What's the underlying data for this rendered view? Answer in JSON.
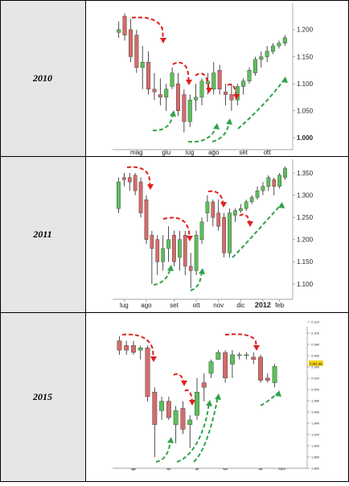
{
  "rows": [
    {
      "year": "2010"
    },
    {
      "year": "2011"
    },
    {
      "year": "2015"
    }
  ],
  "colors": {
    "bull": "#5cbf5a",
    "bear": "#d46b6b",
    "down_arrow": "#e02020",
    "up_arrow": "#2fa34a",
    "cell_bg": "#e6e6e6"
  },
  "chart_data": [
    {
      "type": "candlestick",
      "title": "2010",
      "x_tick_labels": [
        "mag",
        "giu",
        "lug",
        "ago",
        "set",
        "ott"
      ],
      "y_tick_labels": [
        "1.200",
        "1.150",
        "1.100",
        "1.050",
        "1.000"
      ],
      "ylim": [
        0.99,
        1.24
      ],
      "candles": [
        {
          "o": 1.195,
          "h": 1.215,
          "l": 1.185,
          "c": 1.2
        },
        {
          "o": 1.225,
          "h": 1.23,
          "l": 1.18,
          "c": 1.19
        },
        {
          "o": 1.2,
          "h": 1.22,
          "l": 1.14,
          "c": 1.15
        },
        {
          "o": 1.19,
          "h": 1.2,
          "l": 1.12,
          "c": 1.13
        },
        {
          "o": 1.13,
          "h": 1.17,
          "l": 1.09,
          "c": 1.14
        },
        {
          "o": 1.14,
          "h": 1.16,
          "l": 1.08,
          "c": 1.09
        },
        {
          "o": 1.09,
          "h": 1.12,
          "l": 1.07,
          "c": 1.085
        },
        {
          "o": 1.08,
          "h": 1.11,
          "l": 1.06,
          "c": 1.075
        },
        {
          "o": 1.075,
          "h": 1.1,
          "l": 1.05,
          "c": 1.09
        },
        {
          "o": 1.095,
          "h": 1.13,
          "l": 1.09,
          "c": 1.12
        },
        {
          "o": 1.1,
          "h": 1.12,
          "l": 1.04,
          "c": 1.05
        },
        {
          "o": 1.08,
          "h": 1.09,
          "l": 1.01,
          "c": 1.03
        },
        {
          "o": 1.03,
          "h": 1.08,
          "l": 1.02,
          "c": 1.07
        },
        {
          "o": 1.07,
          "h": 1.1,
          "l": 1.05,
          "c": 1.075
        },
        {
          "o": 1.075,
          "h": 1.11,
          "l": 1.06,
          "c": 1.105
        },
        {
          "o": 1.1,
          "h": 1.12,
          "l": 1.08,
          "c": 1.105
        },
        {
          "o": 1.09,
          "h": 1.14,
          "l": 1.08,
          "c": 1.12
        },
        {
          "o": 1.125,
          "h": 1.135,
          "l": 1.08,
          "c": 1.09
        },
        {
          "o": 1.085,
          "h": 1.1,
          "l": 1.06,
          "c": 1.08
        },
        {
          "o": 1.08,
          "h": 1.1,
          "l": 1.05,
          "c": 1.07
        },
        {
          "o": 1.07,
          "h": 1.1,
          "l": 1.06,
          "c": 1.095
        },
        {
          "o": 1.095,
          "h": 1.11,
          "l": 1.08,
          "c": 1.105
        },
        {
          "o": 1.105,
          "h": 1.13,
          "l": 1.1,
          "c": 1.125
        },
        {
          "o": 1.12,
          "h": 1.15,
          "l": 1.115,
          "c": 1.145
        },
        {
          "o": 1.145,
          "h": 1.16,
          "l": 1.13,
          "c": 1.15
        },
        {
          "o": 1.15,
          "h": 1.17,
          "l": 1.14,
          "c": 1.16
        },
        {
          "o": 1.16,
          "h": 1.175,
          "l": 1.155,
          "c": 1.17
        },
        {
          "o": 1.17,
          "h": 1.18,
          "l": 1.165,
          "c": 1.175
        },
        {
          "o": 1.175,
          "h": 1.19,
          "l": 1.17,
          "c": 1.185
        }
      ],
      "x_ticks_at": [
        3,
        8,
        12,
        16,
        21,
        25
      ]
    },
    {
      "type": "candlestick",
      "title": "2011",
      "x_tick_labels": [
        "lug",
        "ago",
        "set",
        "ott",
        "nov",
        "dic",
        "2012",
        "feb"
      ],
      "y_tick_labels": [
        "1.350",
        "1.300",
        "1.250",
        "1.200",
        "1.150",
        "1.100"
      ],
      "ylim": [
        1.08,
        1.37
      ],
      "candles": [
        {
          "o": 1.27,
          "h": 1.34,
          "l": 1.26,
          "c": 1.33
        },
        {
          "o": 1.34,
          "h": 1.35,
          "l": 1.32,
          "c": 1.335
        },
        {
          "o": 1.34,
          "h": 1.35,
          "l": 1.31,
          "c": 1.33
        },
        {
          "o": 1.345,
          "h": 1.35,
          "l": 1.3,
          "c": 1.31
        },
        {
          "o": 1.33,
          "h": 1.34,
          "l": 1.25,
          "c": 1.26
        },
        {
          "o": 1.29,
          "h": 1.3,
          "l": 1.19,
          "c": 1.2
        },
        {
          "o": 1.21,
          "h": 1.22,
          "l": 1.1,
          "c": 1.18
        },
        {
          "o": 1.2,
          "h": 1.21,
          "l": 1.12,
          "c": 1.15
        },
        {
          "o": 1.15,
          "h": 1.21,
          "l": 1.13,
          "c": 1.18
        },
        {
          "o": 1.18,
          "h": 1.23,
          "l": 1.15,
          "c": 1.2
        },
        {
          "o": 1.21,
          "h": 1.22,
          "l": 1.14,
          "c": 1.15
        },
        {
          "o": 1.16,
          "h": 1.22,
          "l": 1.13,
          "c": 1.2
        },
        {
          "o": 1.21,
          "h": 1.22,
          "l": 1.12,
          "c": 1.14
        },
        {
          "o": 1.14,
          "h": 1.17,
          "l": 1.09,
          "c": 1.13
        },
        {
          "o": 1.13,
          "h": 1.22,
          "l": 1.12,
          "c": 1.21
        },
        {
          "o": 1.2,
          "h": 1.25,
          "l": 1.19,
          "c": 1.24
        },
        {
          "o": 1.26,
          "h": 1.3,
          "l": 1.24,
          "c": 1.285
        },
        {
          "o": 1.285,
          "h": 1.29,
          "l": 1.23,
          "c": 1.25
        },
        {
          "o": 1.26,
          "h": 1.29,
          "l": 1.22,
          "c": 1.23
        },
        {
          "o": 1.25,
          "h": 1.26,
          "l": 1.16,
          "c": 1.17
        },
        {
          "o": 1.17,
          "h": 1.27,
          "l": 1.16,
          "c": 1.26
        },
        {
          "o": 1.255,
          "h": 1.27,
          "l": 1.24,
          "c": 1.265
        },
        {
          "o": 1.265,
          "h": 1.28,
          "l": 1.26,
          "c": 1.27
        },
        {
          "o": 1.27,
          "h": 1.29,
          "l": 1.265,
          "c": 1.285
        },
        {
          "o": 1.285,
          "h": 1.3,
          "l": 1.28,
          "c": 1.295
        },
        {
          "o": 1.295,
          "h": 1.32,
          "l": 1.29,
          "c": 1.31
        },
        {
          "o": 1.31,
          "h": 1.33,
          "l": 1.3,
          "c": 1.32
        },
        {
          "o": 1.32,
          "h": 1.345,
          "l": 1.31,
          "c": 1.34
        },
        {
          "o": 1.335,
          "h": 1.34,
          "l": 1.3,
          "c": 1.32
        },
        {
          "o": 1.32,
          "h": 1.35,
          "l": 1.315,
          "c": 1.345
        },
        {
          "o": 1.34,
          "h": 1.365,
          "l": 1.335,
          "c": 1.36
        }
      ],
      "x_ticks_at": [
        1,
        5,
        10,
        14,
        18,
        22,
        26,
        29
      ]
    },
    {
      "type": "candlestick",
      "title": "2015",
      "x_tick_labels": [
        "ago",
        "set",
        "ott",
        "nov",
        "dic",
        "2016"
      ],
      "y_tick_labels": [
        "2.120",
        "2.100",
        "2.080",
        "2.060",
        "2.040",
        "2.020",
        "2.000",
        "1.980",
        "1.960",
        "1.940",
        "1.920",
        "1.900",
        "1.880",
        "1.860"
      ],
      "y_price_tag": "2.061.86",
      "ylim": [
        1.85,
        2.13
      ],
      "candles": [
        {
          "o": 2.11,
          "h": 2.12,
          "l": 2.08,
          "c": 2.09
        },
        {
          "o": 2.1,
          "h": 2.11,
          "l": 2.08,
          "c": 2.09
        },
        {
          "o": 2.1,
          "h": 2.11,
          "l": 2.08,
          "c": 2.085
        },
        {
          "o": 2.09,
          "h": 2.1,
          "l": 2.07,
          "c": 2.095
        },
        {
          "o": 2.095,
          "h": 2.1,
          "l": 1.98,
          "c": 1.99
        },
        {
          "o": 2.0,
          "h": 2.01,
          "l": 1.86,
          "c": 1.93
        },
        {
          "o": 1.96,
          "h": 1.99,
          "l": 1.94,
          "c": 1.98
        },
        {
          "o": 1.98,
          "h": 1.99,
          "l": 1.94,
          "c": 1.945
        },
        {
          "o": 1.93,
          "h": 1.97,
          "l": 1.89,
          "c": 1.96
        },
        {
          "o": 1.965,
          "h": 1.98,
          "l": 1.91,
          "c": 1.92
        },
        {
          "o": 1.93,
          "h": 1.95,
          "l": 1.88,
          "c": 1.94
        },
        {
          "o": 1.95,
          "h": 2.03,
          "l": 1.94,
          "c": 2.0
        },
        {
          "o": 2.02,
          "h": 2.04,
          "l": 1.98,
          "c": 2.01
        },
        {
          "o": 2.04,
          "h": 2.07,
          "l": 2.03,
          "c": 2.065
        },
        {
          "o": 2.07,
          "h": 2.09,
          "l": 2.07,
          "c": 2.085
        },
        {
          "o": 2.085,
          "h": 2.09,
          "l": 2.02,
          "c": 2.03
        },
        {
          "o": 2.06,
          "h": 2.09,
          "l": 2.03,
          "c": 2.08
        },
        {
          "o": 2.08,
          "h": 2.085,
          "l": 2.07,
          "c": 2.08
        },
        {
          "o": 2.08,
          "h": 2.085,
          "l": 2.07,
          "c": 2.08
        },
        {
          "o": 2.075,
          "h": 2.085,
          "l": 2.06,
          "c": 2.07
        },
        {
          "o": 2.075,
          "h": 2.08,
          "l": 2.02,
          "c": 2.025
        },
        {
          "o": 2.03,
          "h": 2.04,
          "l": 2.02,
          "c": 2.025
        },
        {
          "o": 2.02,
          "h": 2.06,
          "l": 2.01,
          "c": 2.055
        }
      ],
      "x_ticks_at": [
        2,
        7,
        11,
        15,
        20,
        23
      ]
    }
  ]
}
